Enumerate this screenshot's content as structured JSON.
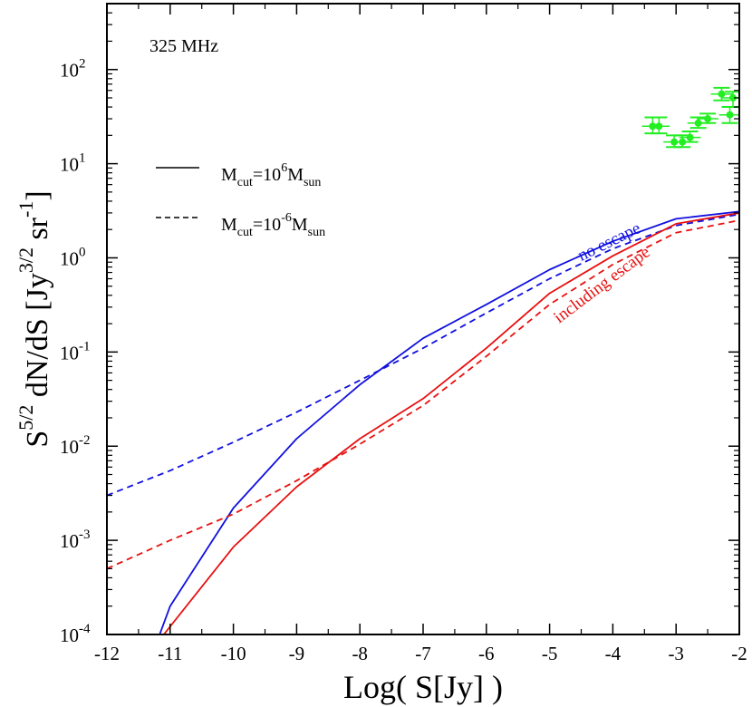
{
  "chart_data": {
    "type": "line",
    "annotation_frequency": "325 MHz",
    "xlabel": "Log( S[Jy] )",
    "ylabel": {
      "main": "S",
      "sup_s": "5/2",
      "mid": " dN/dS  [Jy",
      "sup_jy": "3/2",
      "sr": " sr",
      "sup_sr": "-1",
      "end": "]"
    },
    "xlim": [
      -12,
      -2
    ],
    "ylim_log10": [
      -4,
      2.7
    ],
    "x_ticks": [
      -12,
      -11,
      -10,
      -9,
      -8,
      -7,
      -6,
      -5,
      -4,
      -3,
      -2
    ],
    "y_ticks": [
      {
        "exp": -4,
        "base": "10",
        "sup": "-4"
      },
      {
        "exp": -3,
        "base": "10",
        "sup": "-3"
      },
      {
        "exp": -2,
        "base": "10",
        "sup": "-2"
      },
      {
        "exp": -1,
        "base": "10",
        "sup": "-1"
      },
      {
        "exp": 0,
        "base": "10",
        "sup": "0"
      },
      {
        "exp": 1,
        "base": "10",
        "sup": "1"
      },
      {
        "exp": 2,
        "base": "10",
        "sup": "2"
      }
    ],
    "legend": [
      {
        "style": "solid",
        "m": "M",
        "sub1": "cut",
        "eq": "=10",
        "sup": "6",
        "m2": "M",
        "sub2": "sun"
      },
      {
        "style": "dashed",
        "m": "M",
        "sub1": "cut",
        "eq": "=10",
        "sup": "-6",
        "m2": "M",
        "sub2": "sun"
      }
    ],
    "series": [
      {
        "name": "no escape, Mcut=10^6 Msun",
        "color": "#1010e0",
        "dash": false,
        "x": [
          -11.25,
          -11.0,
          -10.0,
          -9.0,
          -8.0,
          -7.0,
          -6.0,
          -5.0,
          -4.0,
          -3.0,
          -2.0
        ],
        "y": [
          7e-05,
          0.0002,
          0.0022,
          0.012,
          0.045,
          0.14,
          0.32,
          0.75,
          1.5,
          2.6,
          3.1
        ]
      },
      {
        "name": "no escape, Mcut=10^-6 Msun",
        "color": "#1010e0",
        "dash": true,
        "x": [
          -12.0,
          -11.0,
          -10.0,
          -9.0,
          -8.0,
          -7.0,
          -6.0,
          -5.0,
          -4.0,
          -3.0,
          -2.0
        ],
        "y": [
          0.003,
          0.0055,
          0.011,
          0.023,
          0.05,
          0.11,
          0.26,
          0.6,
          1.25,
          2.2,
          2.9
        ]
      },
      {
        "name": "including escape, Mcut=10^6 Msun",
        "color": "#e81010",
        "dash": false,
        "x": [
          -11.1,
          -10.0,
          -9.0,
          -8.0,
          -7.0,
          -6.0,
          -5.0,
          -4.0,
          -3.0,
          -2.0
        ],
        "y": [
          0.0001,
          0.00085,
          0.0037,
          0.012,
          0.032,
          0.11,
          0.42,
          1.05,
          2.3,
          3.0
        ]
      },
      {
        "name": "including escape, Mcut=10^-6 Msun",
        "color": "#e81010",
        "dash": true,
        "x": [
          -12.0,
          -11.0,
          -10.0,
          -9.0,
          -8.0,
          -7.0,
          -6.0,
          -5.0,
          -4.0,
          -3.0,
          -2.0
        ],
        "y": [
          0.0005,
          0.001,
          0.0019,
          0.0043,
          0.0105,
          0.027,
          0.09,
          0.32,
          0.85,
          1.85,
          2.5
        ]
      }
    ],
    "observations": {
      "color": "#22ee22",
      "points": [
        {
          "x": -3.37,
          "y": 25,
          "ylo": 21,
          "yhi": 31,
          "xerr": 0.17
        },
        {
          "x": -3.27,
          "y": 25,
          "ylo": 21,
          "yhi": 31,
          "xerr": 0.17
        },
        {
          "x": -3.03,
          "y": 17,
          "ylo": 15,
          "yhi": 20,
          "xerr": 0.17
        },
        {
          "x": -2.9,
          "y": 17,
          "ylo": 15,
          "yhi": 20,
          "xerr": 0.17
        },
        {
          "x": -2.78,
          "y": 19,
          "ylo": 17,
          "yhi": 22,
          "xerr": 0.17
        },
        {
          "x": -2.65,
          "y": 27,
          "ylo": 24,
          "yhi": 31,
          "xerr": 0.17
        },
        {
          "x": -2.5,
          "y": 30,
          "ylo": 27,
          "yhi": 34,
          "xerr": 0.17
        },
        {
          "x": -2.28,
          "y": 55,
          "ylo": 47,
          "yhi": 64,
          "xerr": 0.17
        },
        {
          "x": -2.15,
          "y": 33,
          "ylo": 27,
          "yhi": 40,
          "xerr": 0.17
        },
        {
          "x": -2.1,
          "y": 50,
          "ylo": 40,
          "yhi": 58,
          "xerr": 0.17
        }
      ]
    },
    "annotations": [
      {
        "text": "no escape",
        "color": "#1010e0",
        "x": -4.5,
        "y": 0.92,
        "angle": -26
      },
      {
        "text": "including escape",
        "color": "#e81010",
        "x": -4.85,
        "y": 0.2,
        "angle": -37
      }
    ]
  }
}
